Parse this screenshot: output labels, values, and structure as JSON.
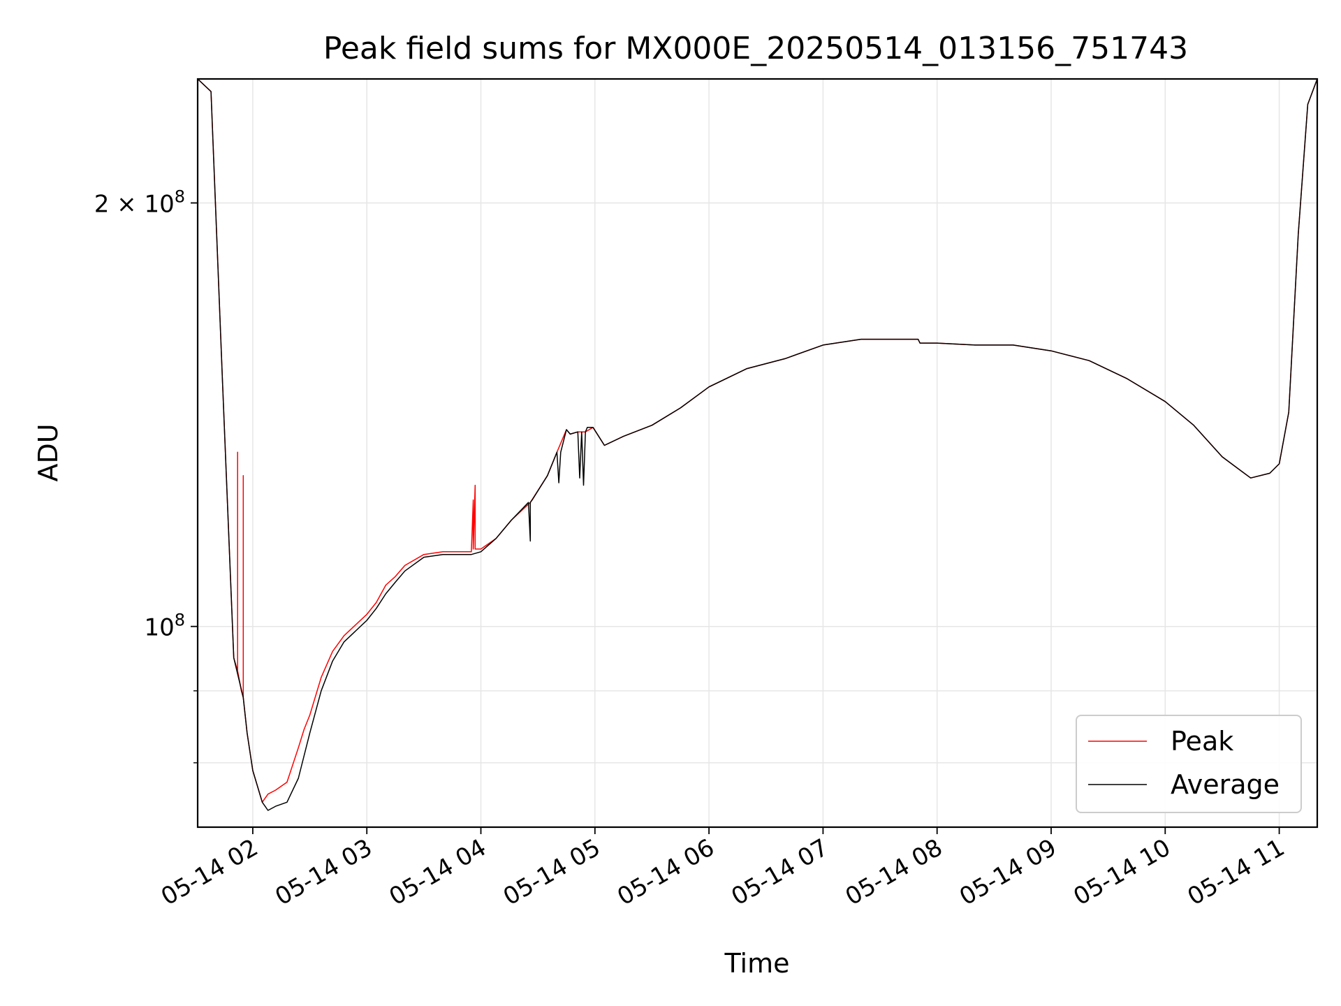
{
  "chart_data": {
    "type": "line",
    "title": "Peak field sums for MX000E_20250514_013156_751743",
    "xlabel": "Time",
    "ylabel": "ADU",
    "y_scale": "log",
    "grid": true,
    "legend_position": "lower-right",
    "xlim": [
      "2025-05-14 01:31",
      "2025-05-14 11:20"
    ],
    "ylim": [
      72000000,
      245000000
    ],
    "x_ticks": [
      {
        "value": "2025-05-14 02:00",
        "label": "05-14 02"
      },
      {
        "value": "2025-05-14 03:00",
        "label": "05-14 03"
      },
      {
        "value": "2025-05-14 04:00",
        "label": "05-14 04"
      },
      {
        "value": "2025-05-14 05:00",
        "label": "05-14 05"
      },
      {
        "value": "2025-05-14 06:00",
        "label": "05-14 06"
      },
      {
        "value": "2025-05-14 07:00",
        "label": "05-14 07"
      },
      {
        "value": "2025-05-14 08:00",
        "label": "05-14 08"
      },
      {
        "value": "2025-05-14 09:00",
        "label": "05-14 09"
      },
      {
        "value": "2025-05-14 10:00",
        "label": "05-14 10"
      },
      {
        "value": "2025-05-14 11:00",
        "label": "05-14 11"
      }
    ],
    "y_ticks": [
      {
        "value": 100000000,
        "base": "10",
        "exp": "8",
        "mant": ""
      },
      {
        "value": 200000000,
        "base": "10",
        "exp": "8",
        "mant": "2 × "
      }
    ],
    "y_minor_ticks": [
      90000000,
      80000000,
      70000000
    ],
    "series": [
      {
        "name": "Peak",
        "color": "#ff0000",
        "x": [
          "2025-05-14 01:31",
          "2025-05-14 01:38",
          "2025-05-14 01:44",
          "2025-05-14 01:50",
          "2025-05-14 01:52",
          "2025-05-14 01:52",
          "2025-05-14 01:52",
          "2025-05-14 01:54",
          "2025-05-14 01:55",
          "2025-05-14 01:55",
          "2025-05-14 01:55",
          "2025-05-14 01:57",
          "2025-05-14 02:00",
          "2025-05-14 02:05",
          "2025-05-14 02:08",
          "2025-05-14 02:12",
          "2025-05-14 02:18",
          "2025-05-14 02:24",
          "2025-05-14 02:27",
          "2025-05-14 02:30",
          "2025-05-14 02:36",
          "2025-05-14 02:42",
          "2025-05-14 02:48",
          "2025-05-14 03:00",
          "2025-05-14 03:05",
          "2025-05-14 03:10",
          "2025-05-14 03:15",
          "2025-05-14 03:20",
          "2025-05-14 03:30",
          "2025-05-14 03:40",
          "2025-05-14 03:47",
          "2025-05-14 03:55",
          "2025-05-14 03:56",
          "2025-05-14 03:56",
          "2025-05-14 03:57",
          "2025-05-14 03:57",
          "2025-05-14 04:00",
          "2025-05-14 04:08",
          "2025-05-14 04:16",
          "2025-05-14 04:26",
          "2025-05-14 04:35",
          "2025-05-14 04:40",
          "2025-05-14 04:45",
          "2025-05-14 04:47",
          "2025-05-14 04:51",
          "2025-05-14 04:55",
          "2025-05-14 04:59",
          "2025-05-14 05:05",
          "2025-05-14 05:15",
          "2025-05-14 05:30",
          "2025-05-14 05:45",
          "2025-05-14 06:00",
          "2025-05-14 06:20",
          "2025-05-14 06:40",
          "2025-05-14 07:00",
          "2025-05-14 07:20",
          "2025-05-14 07:40",
          "2025-05-14 07:50",
          "2025-05-14 07:51",
          "2025-05-14 08:00",
          "2025-05-14 08:20",
          "2025-05-14 08:40",
          "2025-05-14 09:00",
          "2025-05-14 09:20",
          "2025-05-14 09:40",
          "2025-05-14 10:00",
          "2025-05-14 10:15",
          "2025-05-14 10:30",
          "2025-05-14 10:45",
          "2025-05-14 10:55",
          "2025-05-14 11:00",
          "2025-05-14 11:05",
          "2025-05-14 11:10",
          "2025-05-14 11:15",
          "2025-05-14 11:20"
        ],
        "values": [
          245000000,
          240000000,
          150000000,
          95000000,
          93000000,
          133000000,
          93000000,
          90000000,
          89000000,
          128000000,
          89000000,
          84000000,
          79000000,
          75000000,
          76000000,
          76500000,
          77500000,
          82000000,
          84500000,
          86500000,
          92000000,
          96000000,
          98500000,
          102000000,
          104000000,
          107000000,
          108500000,
          110500000,
          112500000,
          113000000,
          113000000,
          113000000,
          123000000,
          113500000,
          126000000,
          113500000,
          113500000,
          115500000,
          119000000,
          122500000,
          128000000,
          133000000,
          138000000,
          137000000,
          137500000,
          137500000,
          138500000,
          134500000,
          136500000,
          139000000,
          143000000,
          148000000,
          152500000,
          155000000,
          158500000,
          160000000,
          160000000,
          160000000,
          159000000,
          159000000,
          158500000,
          158500000,
          157000000,
          154500000,
          150000000,
          144500000,
          139000000,
          132000000,
          127500000,
          128500000,
          130500000,
          142000000,
          190000000,
          235000000,
          245000000
        ]
      },
      {
        "name": "Average",
        "color": "#000000",
        "x": [
          "2025-05-14 01:31",
          "2025-05-14 01:38",
          "2025-05-14 01:44",
          "2025-05-14 01:50",
          "2025-05-14 01:55",
          "2025-05-14 01:57",
          "2025-05-14 02:00",
          "2025-05-14 02:05",
          "2025-05-14 02:08",
          "2025-05-14 02:12",
          "2025-05-14 02:18",
          "2025-05-14 02:24",
          "2025-05-14 02:30",
          "2025-05-14 02:36",
          "2025-05-14 02:42",
          "2025-05-14 02:48",
          "2025-05-14 03:00",
          "2025-05-14 03:05",
          "2025-05-14 03:10",
          "2025-05-14 03:15",
          "2025-05-14 03:20",
          "2025-05-14 03:30",
          "2025-05-14 03:40",
          "2025-05-14 03:47",
          "2025-05-14 03:55",
          "2025-05-14 04:00",
          "2025-05-14 04:08",
          "2025-05-14 04:16",
          "2025-05-14 04:25",
          "2025-05-14 04:26",
          "2025-05-14 04:26",
          "2025-05-14 04:27",
          "2025-05-14 04:35",
          "2025-05-14 04:40",
          "2025-05-14 04:41",
          "2025-05-14 04:42",
          "2025-05-14 04:45",
          "2025-05-14 04:47",
          "2025-05-14 04:51",
          "2025-05-14 04:52",
          "2025-05-14 04:53",
          "2025-05-14 04:54",
          "2025-05-14 04:55",
          "2025-05-14 04:56",
          "2025-05-14 04:59",
          "2025-05-14 05:05",
          "2025-05-14 05:15",
          "2025-05-14 05:30",
          "2025-05-14 05:45",
          "2025-05-14 06:00",
          "2025-05-14 06:20",
          "2025-05-14 06:40",
          "2025-05-14 07:00",
          "2025-05-14 07:20",
          "2025-05-14 07:40",
          "2025-05-14 07:50",
          "2025-05-14 07:51",
          "2025-05-14 08:00",
          "2025-05-14 08:20",
          "2025-05-14 08:40",
          "2025-05-14 09:00",
          "2025-05-14 09:20",
          "2025-05-14 09:40",
          "2025-05-14 10:00",
          "2025-05-14 10:15",
          "2025-05-14 10:30",
          "2025-05-14 10:45",
          "2025-05-14 10:55",
          "2025-05-14 11:00",
          "2025-05-14 11:05",
          "2025-05-14 11:10",
          "2025-05-14 11:15",
          "2025-05-14 11:20"
        ],
        "values": [
          245000000,
          240000000,
          150000000,
          95000000,
          89000000,
          84000000,
          79000000,
          75000000,
          74000000,
          74500000,
          75000000,
          78000000,
          84000000,
          90000000,
          94500000,
          97500000,
          101000000,
          103000000,
          105500000,
          107500000,
          109500000,
          112000000,
          112500000,
          112500000,
          112500000,
          113000000,
          115500000,
          119000000,
          122500000,
          115000000,
          122500000,
          123000000,
          128000000,
          133000000,
          126500000,
          133000000,
          138000000,
          137000000,
          137500000,
          127500000,
          137500000,
          126000000,
          137500000,
          138500000,
          138500000,
          134500000,
          136500000,
          139000000,
          143000000,
          148000000,
          152500000,
          155000000,
          158500000,
          160000000,
          160000000,
          160000000,
          159000000,
          159000000,
          158500000,
          158500000,
          157000000,
          154500000,
          150000000,
          144500000,
          139000000,
          132000000,
          127500000,
          128500000,
          130500000,
          142000000,
          190000000,
          235000000,
          245000000
        ]
      }
    ]
  }
}
